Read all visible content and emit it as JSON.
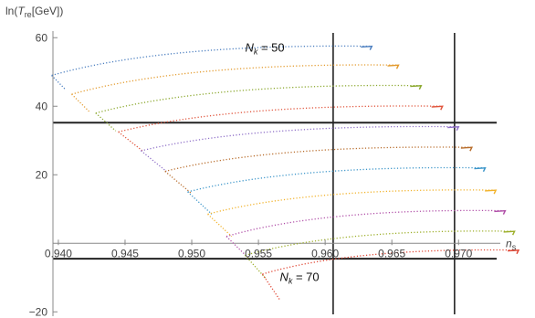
{
  "chart_data": {
    "type": "scatter",
    "title": "",
    "ylabel_parts": {
      "pre": "ln(",
      "sym": "T",
      "sub": "re",
      "post": "[GeV])"
    },
    "xlabel_parts": {
      "sym": "n",
      "sub": "s"
    },
    "xlim": [
      0.9385,
      0.9745
    ],
    "ylim": [
      -21,
      63
    ],
    "x_ticks": [
      {
        "value": 0.94,
        "label": "0.940"
      },
      {
        "value": 0.945,
        "label": "0.945"
      },
      {
        "value": 0.95,
        "label": "0.950"
      },
      {
        "value": 0.955,
        "label": "0.955"
      },
      {
        "value": 0.96,
        "label": "0.960"
      },
      {
        "value": 0.965,
        "label": "0.965"
      },
      {
        "value": 0.97,
        "label": "0.970"
      }
    ],
    "y_ticks": [
      {
        "value": -20,
        "label": "−20"
      },
      {
        "value": 20,
        "label": "20"
      },
      {
        "value": 40,
        "label": "40"
      },
      {
        "value": 60,
        "label": "60"
      }
    ],
    "reference_lines": {
      "vertical": [
        0.9606,
        0.9697
      ],
      "horizontal": [
        35.2,
        -4.5
      ]
    },
    "annotations": [
      {
        "sym": "N",
        "sub": "k",
        "text": " = 50",
        "x": 0.954,
        "y": 56
      },
      {
        "sym": "N",
        "sub": "k",
        "text": " = 70",
        "x": 0.9566,
        "y": -11
      }
    ],
    "series": [
      {
        "color": "#4c7fc0",
        "start": [
          0.9395,
          49.0
        ],
        "hook": [
          0.9405,
          45.0
        ],
        "end": [
          0.9635,
          57.5
        ]
      },
      {
        "color": "#e39a2c",
        "start": [
          0.941,
          43.5
        ],
        "hook": [
          0.9423,
          38.5
        ],
        "end": [
          0.9655,
          52.0
        ]
      },
      {
        "color": "#8aa72c",
        "start": [
          0.9428,
          38.0
        ],
        "hook": [
          0.9443,
          32.8
        ],
        "end": [
          0.9672,
          46.0
        ]
      },
      {
        "color": "#e0533a",
        "start": [
          0.9445,
          32.5
        ],
        "hook": [
          0.9463,
          27.0
        ],
        "end": [
          0.9688,
          40.0
        ]
      },
      {
        "color": "#8f70c8",
        "start": [
          0.9462,
          27.0
        ],
        "hook": [
          0.9481,
          21.0
        ],
        "end": [
          0.97,
          34.0
        ]
      },
      {
        "color": "#b86d2c",
        "start": [
          0.948,
          21.0
        ],
        "hook": [
          0.95,
          14.5
        ],
        "end": [
          0.971,
          28.0
        ]
      },
      {
        "color": "#3b95c9",
        "start": [
          0.9497,
          15.0
        ],
        "hook": [
          0.9515,
          8.5
        ],
        "end": [
          0.972,
          22.0
        ]
      },
      {
        "color": "#f2b22a",
        "start": [
          0.9512,
          8.5
        ],
        "hook": [
          0.953,
          2.0
        ],
        "end": [
          0.9728,
          15.5
        ]
      },
      {
        "color": "#b04fa8",
        "start": [
          0.9526,
          2.0
        ],
        "hook": [
          0.9543,
          -4.5
        ],
        "end": [
          0.9735,
          9.5
        ]
      },
      {
        "color": "#9cae28",
        "start": [
          0.954,
          -3.5
        ],
        "hook": [
          0.9556,
          -10.5
        ],
        "end": [
          0.9742,
          3.5
        ]
      },
      {
        "color": "#e04533",
        "start": [
          0.9553,
          -9.0
        ],
        "hook": [
          0.9566,
          -16.5
        ],
        "end": [
          0.9745,
          -2.0
        ]
      }
    ]
  }
}
